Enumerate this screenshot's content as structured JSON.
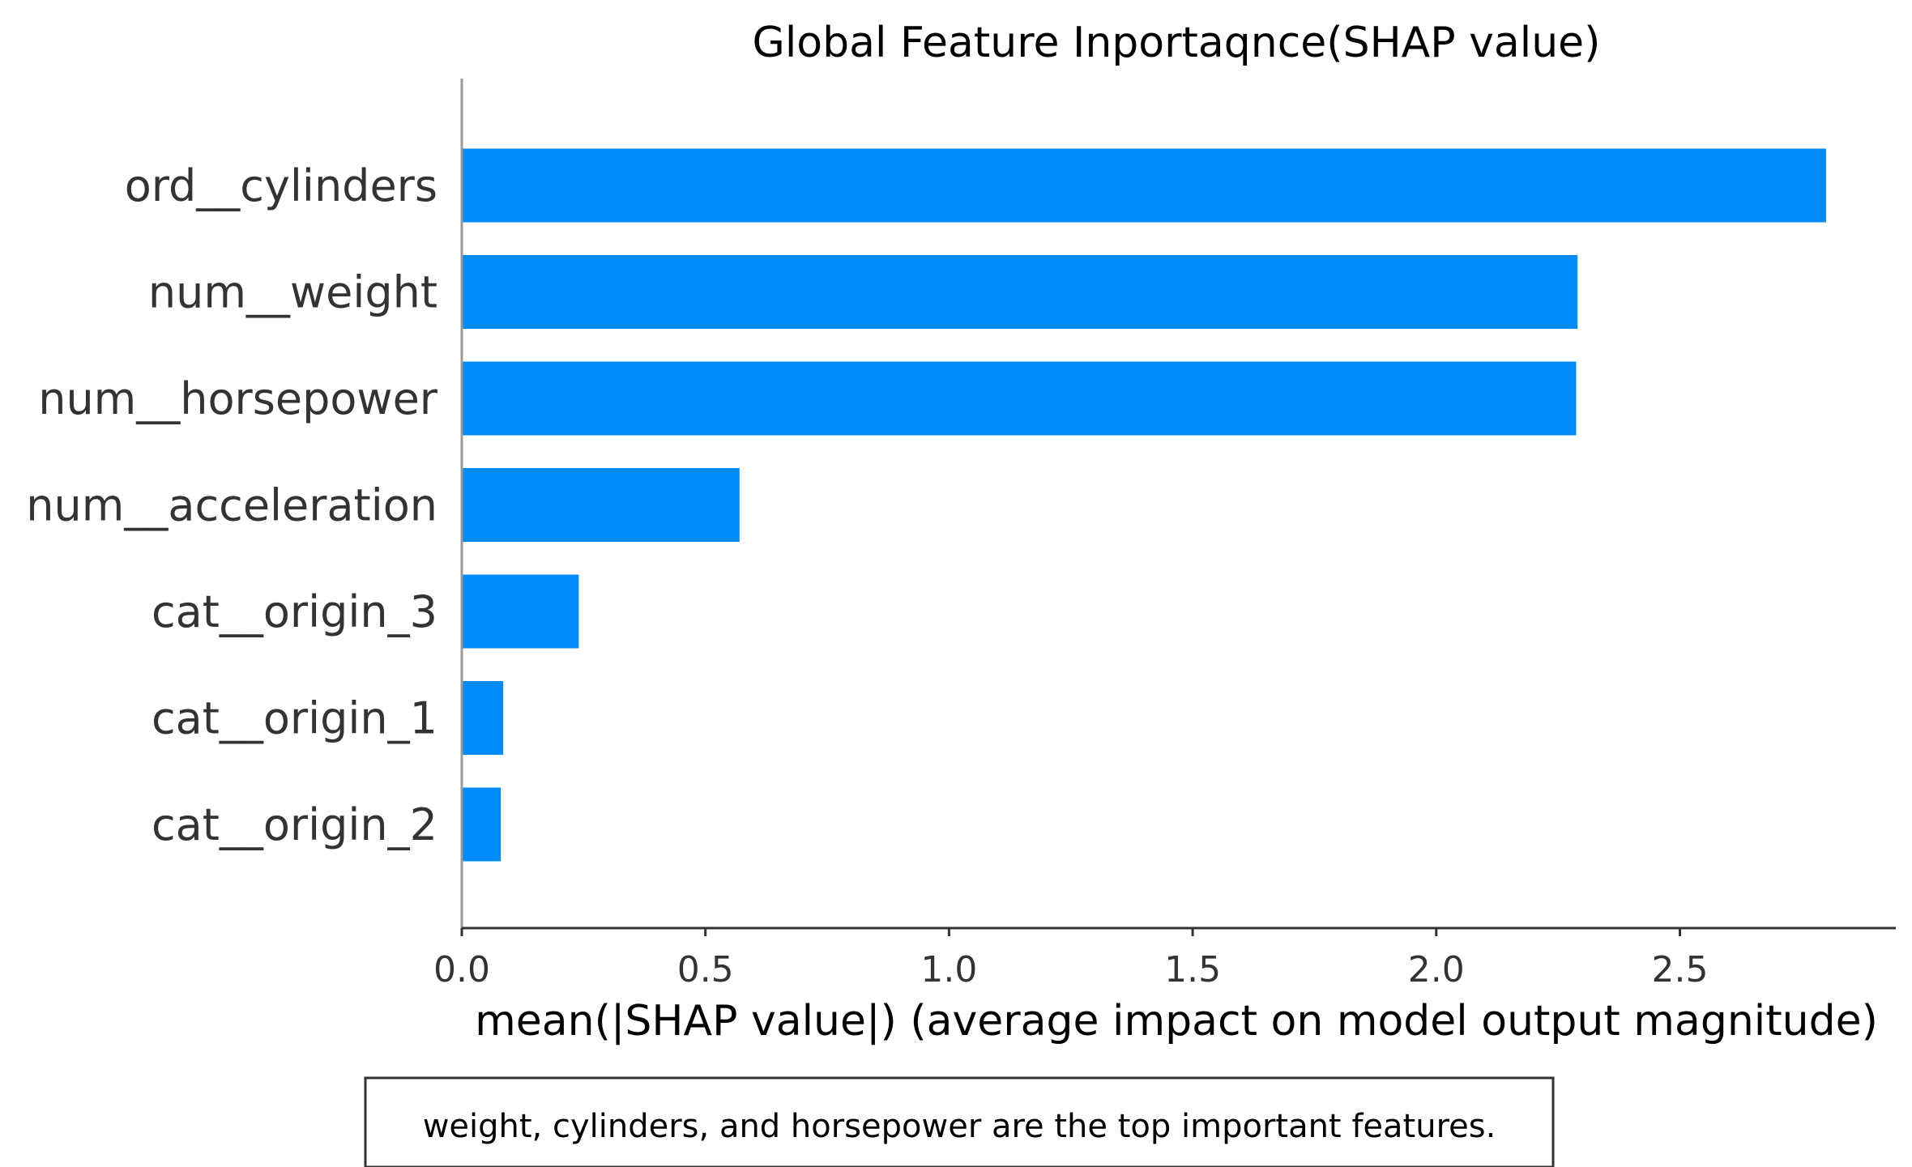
{
  "chart_data": {
    "type": "bar",
    "orientation": "horizontal",
    "title": "Global Feature Inportaqnce(SHAP value)",
    "xlabel": "mean(|SHAP value|) (average impact on model output magnitude)",
    "ylabel": "",
    "categories": [
      "ord__cylinders",
      "num__weight",
      "num__horsepower",
      "num__acceleration",
      "cat__origin_3",
      "cat__origin_1",
      "cat__origin_2"
    ],
    "values": [
      2.8,
      2.29,
      2.287,
      0.57,
      0.24,
      0.085,
      0.08
    ],
    "xlim": [
      0,
      2.95
    ],
    "xticks": [
      0.0,
      0.5,
      1.0,
      1.5,
      2.0,
      2.5
    ],
    "xtick_labels": [
      "0.0",
      "0.5",
      "1.0",
      "1.5",
      "2.0",
      "2.5"
    ],
    "bar_color": "#008bfb",
    "grid": false,
    "legend": "none",
    "annotation": "weight, cylinders, and horsepower are the top important features."
  }
}
